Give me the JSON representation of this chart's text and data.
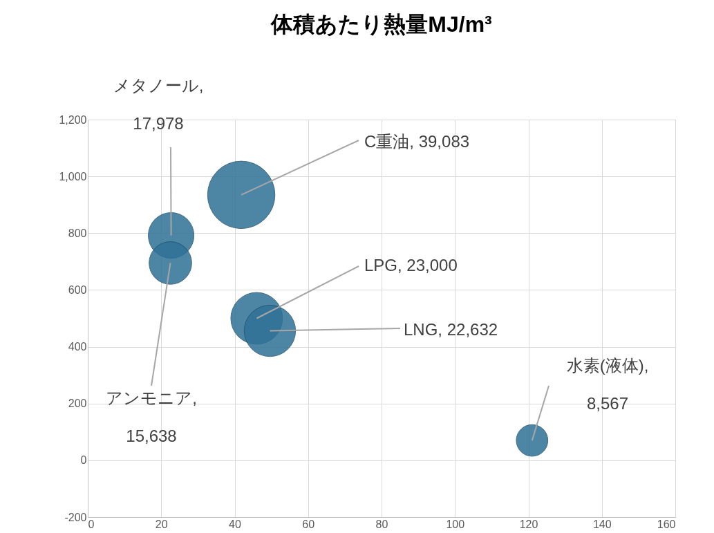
{
  "chart_data": {
    "type": "bubble",
    "title": "体積あたり熱量MJ/m³",
    "series": [
      {
        "color": "#2f7196",
        "x": [
          22.7,
          22.5,
          41.8,
          46,
          49.6,
          121
        ],
        "values": [
          792,
          695,
          935,
          500,
          456,
          70
        ],
        "sizes": [
          0.46,
          0.4,
          1,
          0.59,
          0.58,
          0.22
        ]
      }
    ],
    "annotations": [
      {
        "text": "メタノール, 17,978",
        "x": 22.7,
        "y": 792
      },
      {
        "text": "アンモニア, 15,638",
        "x": 22.5,
        "y": 695
      },
      {
        "text": "C重油, 39,083",
        "x": 41.8,
        "y": 935
      },
      {
        "text": "LPG, 23,000",
        "x": 46,
        "y": 500
      },
      {
        "text": "LNG, 22,632",
        "x": 49.6,
        "y": 456
      },
      {
        "text": "水素(液体), 8,567",
        "x": 121,
        "y": 70
      }
    ],
    "xlim": [
      0,
      160
    ],
    "xticks": [
      0,
      20,
      40,
      60,
      80,
      100,
      120,
      140,
      160
    ],
    "ylim": [
      -200,
      1200
    ],
    "yticks": [
      -200,
      0,
      {
        "value": 200,
        "label": "200"
      },
      400,
      600,
      800,
      {
        "value": 1000,
        "label": "1,000"
      },
      {
        "value": 1200,
        "label": "1,200"
      }
    ],
    "grid": true
  }
}
